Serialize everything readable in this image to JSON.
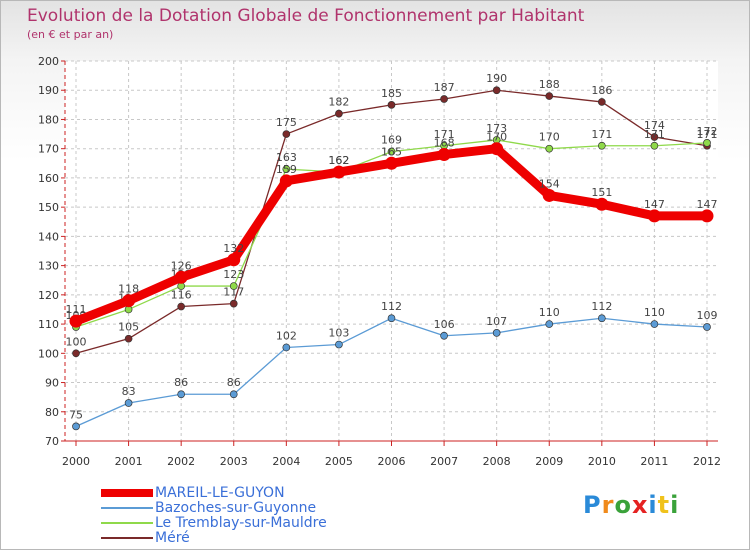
{
  "chart_data": {
    "type": "line",
    "title": "Evolution de la Dotation Globale de Fonctionnement par Habitant",
    "subtitle": "(en € et par an)",
    "xlabel": "",
    "ylabel": "",
    "ylim": [
      70,
      200
    ],
    "yticks": [
      70,
      80,
      90,
      100,
      110,
      120,
      130,
      140,
      150,
      160,
      170,
      180,
      190,
      200
    ],
    "categories": [
      "2000",
      "2001",
      "2002",
      "2003",
      "2004",
      "2005",
      "2006",
      "2007",
      "2008",
      "2009",
      "2010",
      "2011",
      "2012"
    ],
    "grid": true,
    "legend_position": "bottom-left",
    "series": [
      {
        "name": "Méré",
        "color": "#7a2a2a",
        "values": [
          100,
          105,
          116,
          117,
          175,
          182,
          185,
          187,
          190,
          188,
          186,
          174,
          171
        ]
      },
      {
        "name": "Le Tremblay-sur-Mauldre",
        "color": "#8fd94a",
        "values": [
          109,
          115,
          123,
          123,
          163,
          162,
          169,
          171,
          173,
          170,
          171,
          171,
          172
        ]
      },
      {
        "name": "Bazoches-sur-Guyonne",
        "color": "#5b9bd5",
        "values": [
          75,
          83,
          86,
          86,
          102,
          103,
          112,
          106,
          107,
          110,
          112,
          110,
          109
        ]
      },
      {
        "name": "MAREIL-LE-GUYON",
        "color": "#ee0000",
        "values": [
          111,
          118,
          126,
          132,
          159,
          162,
          165,
          168,
          170,
          154,
          151,
          147,
          147
        ]
      }
    ]
  },
  "legend": {
    "items": [
      {
        "label": "MAREIL-LE-GUYON",
        "color": "#ee0000"
      },
      {
        "label": "Bazoches-sur-Guyonne",
        "color": "#5b9bd5"
      },
      {
        "label": "Le Tremblay-sur-Mauldre",
        "color": "#8fd94a"
      },
      {
        "label": "Méré",
        "color": "#7a2a2a"
      }
    ]
  },
  "logo": {
    "letters": [
      "P",
      "r",
      "o",
      "x",
      "i",
      "t",
      "i"
    ],
    "colors": [
      "#2a8ad8",
      "#f08a1c",
      "#3aa23a",
      "#e52222",
      "#2a8ad8",
      "#f0c21c",
      "#3aa23a"
    ]
  }
}
